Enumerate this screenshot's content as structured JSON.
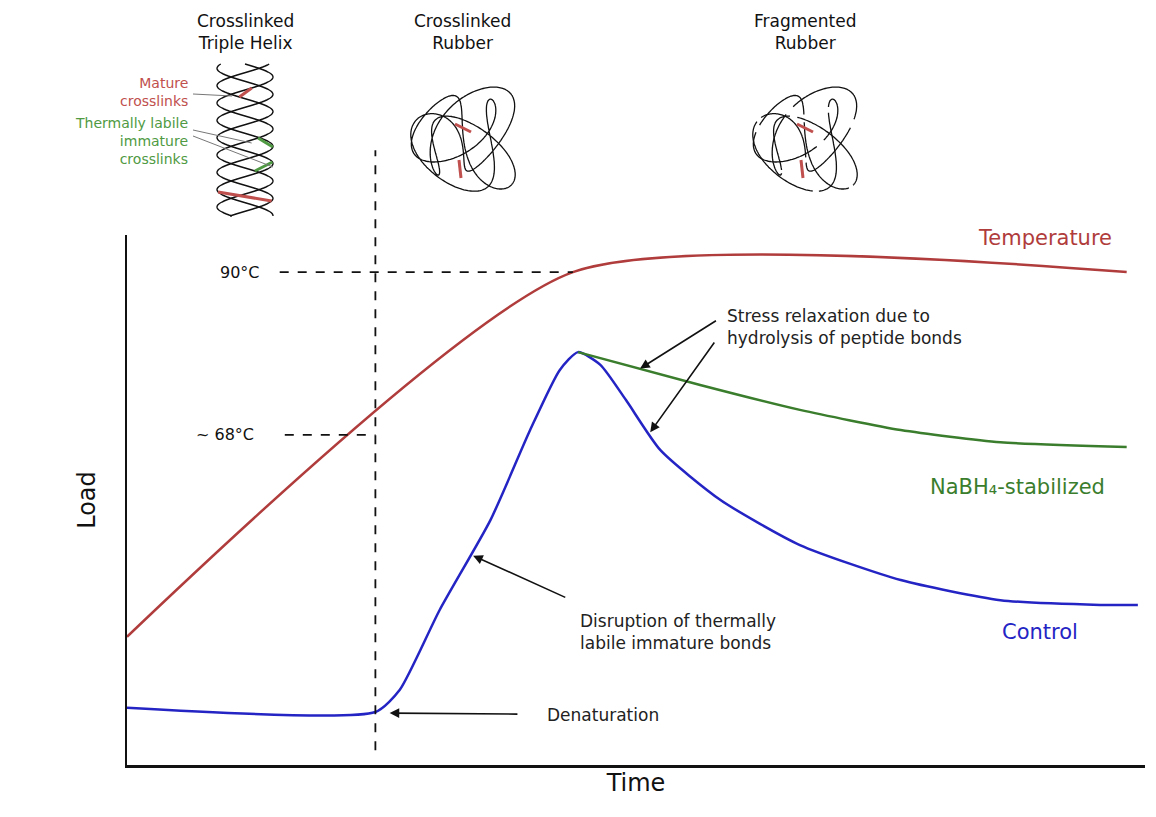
{
  "chart_data": {
    "type": "line",
    "x_label": "Time",
    "y_label": "Load",
    "xlim": [
      0,
      100
    ],
    "ylim": [
      0,
      100
    ],
    "tick_labels": false,
    "grid": false,
    "series": [
      {
        "name": "Temperature",
        "color": "#b03c3c",
        "x": [
          0,
          43.8,
          98.2
        ],
        "values": [
          24.2,
          93,
          93
        ]
      },
      {
        "name": "Control",
        "color": "#2424c4",
        "x": [
          0,
          24.4,
          26.8,
          30.7,
          35.7,
          39.6,
          42.5,
          44.3,
          46.5,
          49.0,
          52.4,
          58.3,
          66.1,
          76.0,
          85.8,
          95.6,
          99.3
        ],
        "values": [
          10.8,
          10.0,
          14.2,
          29.2,
          46.2,
          63.2,
          74.5,
          77.9,
          75.5,
          68.9,
          59.4,
          50.0,
          41.5,
          34.9,
          31.1,
          30.2,
          30.2
        ]
      },
      {
        "name": "NaBH₄-stabilized",
        "color": "#3a7d2c",
        "x": [
          44.3,
          56.3,
          66.1,
          76.0,
          85.8,
          98.2
        ],
        "values": [
          77.9,
          71.7,
          67.0,
          63.2,
          60.9,
          60.0
        ]
      }
    ],
    "reference_lines": [
      {
        "y": 93,
        "x": 43.8,
        "label": "90°C"
      },
      {
        "y": 62.3,
        "x": 24.4,
        "label": "~ 68°C"
      }
    ],
    "stages": [
      "Crosslinked Triple Helix",
      "Crosslinked Rubber",
      "Fragmented Rubber"
    ],
    "crosslink_labels": [
      "Mature crosslinks",
      "Thermally labile immature crosslinks"
    ],
    "annotations": [
      "Stress relaxation due to hydrolysis of peptide bonds",
      "Disruption of thermally labile immature bonds",
      "Denaturation"
    ]
  }
}
